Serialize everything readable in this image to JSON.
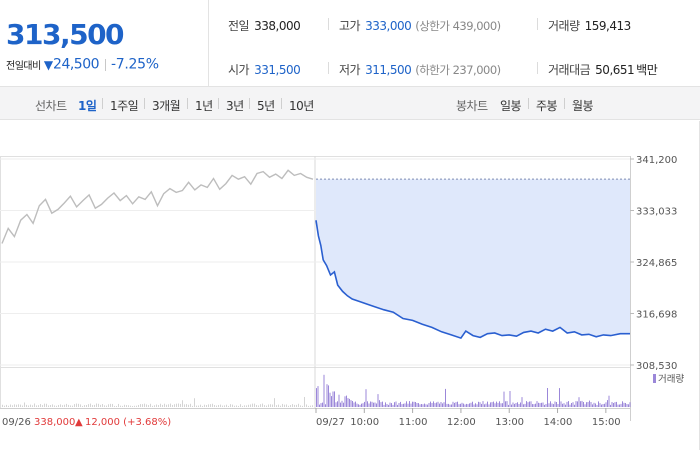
{
  "quote": {
    "price": "313,500",
    "change_label": "전일대비",
    "change_arrow": "▼",
    "change_amount": "24,500",
    "change_rate": "-7.25%",
    "direction_color": "#1e63c8"
  },
  "stats": {
    "prev_close": {
      "label": "전일",
      "value": "338,000"
    },
    "high": {
      "label": "고가",
      "value": "333,000",
      "sub": "(상한가 439,000)"
    },
    "volume": {
      "label": "거래량",
      "value": "159,413"
    },
    "open": {
      "label": "시가",
      "value": "331,500"
    },
    "low": {
      "label": "저가",
      "value": "311,500",
      "sub": "(하한가 237,000)"
    },
    "trade_value": {
      "label": "거래대금",
      "value": "50,651",
      "unit": "백만"
    }
  },
  "toolbar": {
    "line_label": "선차트",
    "line_periods": [
      "1일",
      "1주일",
      "3개월",
      "1년",
      "3년",
      "5년",
      "10년"
    ],
    "line_active": "1일",
    "candle_label": "봉차트",
    "candle_periods": [
      "일봉",
      "주봉",
      "월봉"
    ]
  },
  "chart_data": {
    "type": "line",
    "price_axis_ticks": [
      "341,200",
      "333,033",
      "324,865",
      "316,698",
      "308,530"
    ],
    "ylim": [
      308530,
      341200
    ],
    "prev_close": 338000,
    "volume_legend": "거래량",
    "prev_day": {
      "date_label": "09/26",
      "close_label": "338,000",
      "change_arrow": "▲",
      "change_label": "12,000 (+3.68%)",
      "series_color": "#bdbdbd",
      "points": [
        [
          0,
          327800
        ],
        [
          0.02,
          330200
        ],
        [
          0.04,
          328900
        ],
        [
          0.06,
          331500
        ],
        [
          0.08,
          332400
        ],
        [
          0.1,
          331000
        ],
        [
          0.12,
          333800
        ],
        [
          0.14,
          334800
        ],
        [
          0.16,
          332600
        ],
        [
          0.18,
          333200
        ],
        [
          0.2,
          334200
        ],
        [
          0.22,
          335300
        ],
        [
          0.24,
          333600
        ],
        [
          0.26,
          334600
        ],
        [
          0.28,
          335500
        ],
        [
          0.3,
          333400
        ],
        [
          0.32,
          334000
        ],
        [
          0.34,
          335000
        ],
        [
          0.36,
          335800
        ],
        [
          0.38,
          334600
        ],
        [
          0.4,
          335400
        ],
        [
          0.42,
          334100
        ],
        [
          0.44,
          335200
        ],
        [
          0.46,
          334800
        ],
        [
          0.48,
          336000
        ],
        [
          0.5,
          333800
        ],
        [
          0.52,
          335700
        ],
        [
          0.54,
          336500
        ],
        [
          0.56,
          335900
        ],
        [
          0.58,
          336200
        ],
        [
          0.6,
          337500
        ],
        [
          0.62,
          336300
        ],
        [
          0.64,
          337100
        ],
        [
          0.66,
          336700
        ],
        [
          0.68,
          338100
        ],
        [
          0.7,
          336400
        ],
        [
          0.72,
          337300
        ],
        [
          0.74,
          338600
        ],
        [
          0.76,
          338000
        ],
        [
          0.78,
          338400
        ],
        [
          0.8,
          337200
        ],
        [
          0.82,
          338900
        ],
        [
          0.84,
          339200
        ],
        [
          0.86,
          338300
        ],
        [
          0.88,
          338800
        ],
        [
          0.9,
          338100
        ],
        [
          0.92,
          339400
        ],
        [
          0.94,
          338600
        ],
        [
          0.96,
          338900
        ],
        [
          0.98,
          338300
        ],
        [
          1.0,
          338000
        ]
      ]
    },
    "today": {
      "date_label": "09/27",
      "time_ticks": [
        "10:00",
        "11:00",
        "12:00",
        "13:00",
        "14:00",
        "15:00"
      ],
      "series_color": "#2a5fd0",
      "fill_color": "#dfe8fb",
      "points": [
        [
          9.0,
          331500
        ],
        [
          9.05,
          329000
        ],
        [
          9.1,
          327500
        ],
        [
          9.15,
          325200
        ],
        [
          9.22,
          324300
        ],
        [
          9.3,
          322800
        ],
        [
          9.38,
          323300
        ],
        [
          9.45,
          321200
        ],
        [
          9.55,
          320200
        ],
        [
          9.65,
          319500
        ],
        [
          9.75,
          319000
        ],
        [
          9.9,
          318600
        ],
        [
          10.05,
          318200
        ],
        [
          10.2,
          317800
        ],
        [
          10.4,
          317300
        ],
        [
          10.6,
          316900
        ],
        [
          10.8,
          315900
        ],
        [
          11.0,
          315600
        ],
        [
          11.2,
          315000
        ],
        [
          11.4,
          314500
        ],
        [
          11.6,
          313800
        ],
        [
          11.8,
          313300
        ],
        [
          12.0,
          312800
        ],
        [
          12.1,
          313900
        ],
        [
          12.25,
          313200
        ],
        [
          12.4,
          312900
        ],
        [
          12.55,
          313500
        ],
        [
          12.7,
          313600
        ],
        [
          12.85,
          313200
        ],
        [
          13.0,
          313300
        ],
        [
          13.15,
          313100
        ],
        [
          13.3,
          313700
        ],
        [
          13.45,
          313900
        ],
        [
          13.6,
          313600
        ],
        [
          13.75,
          314200
        ],
        [
          13.9,
          313900
        ],
        [
          14.05,
          314500
        ],
        [
          14.2,
          313600
        ],
        [
          14.35,
          313800
        ],
        [
          14.5,
          313300
        ],
        [
          14.65,
          313400
        ],
        [
          14.8,
          313000
        ],
        [
          14.95,
          313300
        ],
        [
          15.1,
          313200
        ],
        [
          15.3,
          313500
        ]
      ]
    }
  }
}
